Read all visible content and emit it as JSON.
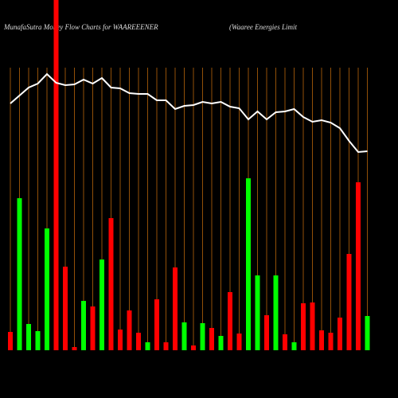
{
  "chart_data": {
    "type": "bar",
    "title": "MunafaSutra  Money Flow  Charts for WAAREEENER",
    "subtitle": "(Waaree   Energies Limit",
    "categories": [
      null,
      null,
      null,
      null,
      null,
      null,
      null,
      null,
      null,
      null,
      null,
      null,
      null,
      null,
      null,
      null,
      null,
      null,
      null,
      null,
      null,
      null,
      null,
      null,
      null,
      null,
      null,
      null,
      null,
      null,
      null,
      null,
      null,
      null,
      null,
      null,
      null,
      null,
      null,
      null
    ],
    "values": [
      23,
      191,
      33,
      24,
      153,
      440,
      105,
      4,
      62,
      55,
      114,
      166,
      26,
      50,
      22,
      10,
      64,
      10,
      104,
      35,
      6,
      34,
      28,
      18,
      73,
      21,
      216,
      94,
      44,
      94,
      20,
      10,
      59,
      60,
      25,
      22,
      41,
      121,
      211,
      43
    ],
    "colors": [
      "#ff0000",
      "#00ff00",
      "#00ff00",
      "#00ff00",
      "#00ff00",
      "#ff0000",
      "#ff0000",
      "#ff0000",
      "#00ff00",
      "#ff0000",
      "#00ff00",
      "#ff0000",
      "#ff0000",
      "#ff0000",
      "#ff0000",
      "#00ff00",
      "#ff0000",
      "#ff0000",
      "#ff0000",
      "#00ff00",
      "#ff0000",
      "#00ff00",
      "#ff0000",
      "#00ff00",
      "#ff0000",
      "#ff0000",
      "#00ff00",
      "#00ff00",
      "#ff0000",
      "#00ff00",
      "#ff0000",
      "#00ff00",
      "#ff0000",
      "#ff0000",
      "#ff0000",
      "#ff0000",
      "#ff0000",
      "#ff0000",
      "#ff0000",
      "#00ff00"
    ],
    "line": {
      "color": "#ffffff",
      "values": [
        310,
        320,
        330,
        335,
        347,
        336,
        333,
        334,
        340,
        335,
        342,
        330,
        329,
        323,
        322,
        322,
        314,
        314,
        303,
        307,
        308,
        312,
        310,
        312,
        306,
        304,
        290,
        300,
        290,
        299,
        300,
        303,
        293,
        287,
        289,
        286,
        279,
        263,
        249,
        250
      ]
    },
    "ylim": [
      0,
      440
    ],
    "grid_color": "#b8650a"
  }
}
